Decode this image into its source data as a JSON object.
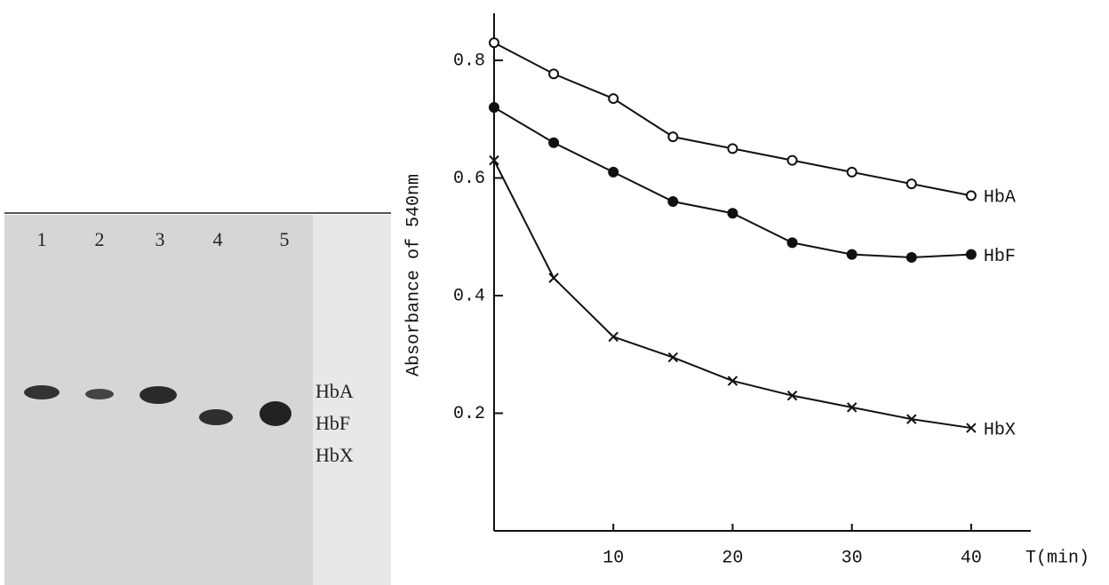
{
  "gel": {
    "lanes": [
      "1",
      "2",
      "3",
      "4",
      "5"
    ],
    "bands": [
      "HbA",
      "HbF",
      "HbX"
    ]
  },
  "chart_data": {
    "type": "line",
    "ylabel": "Absorbance of 540nm",
    "xlabel": "T(min)",
    "x": [
      0,
      5,
      10,
      15,
      20,
      25,
      30,
      35,
      40
    ],
    "series": [
      {
        "name": "HbA",
        "color": "#111111",
        "marker": "open-circle",
        "values": [
          0.83,
          0.777,
          0.735,
          0.67,
          0.65,
          0.63,
          0.61,
          0.59,
          0.57
        ]
      },
      {
        "name": "HbF",
        "color": "#111111",
        "marker": "filled-circle",
        "values": [
          0.72,
          0.66,
          0.61,
          0.56,
          0.54,
          0.49,
          0.47,
          0.465,
          0.47
        ]
      },
      {
        "name": "HbX",
        "color": "#111111",
        "marker": "cross",
        "values": [
          0.63,
          0.43,
          0.33,
          0.295,
          0.255,
          0.23,
          0.21,
          0.19,
          0.175
        ]
      }
    ],
    "xlim": [
      0,
      45
    ],
    "ylim": [
      0,
      0.88
    ],
    "xticks": [
      10,
      20,
      30,
      40
    ],
    "yticks": [
      0.2,
      0.4,
      0.6,
      0.8
    ]
  }
}
